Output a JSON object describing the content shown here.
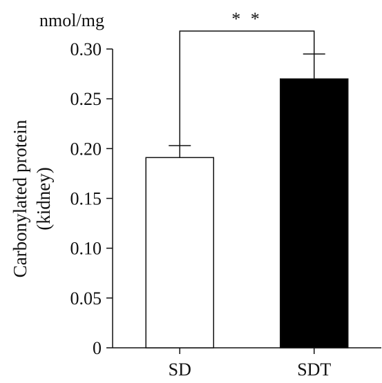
{
  "chart_data": {
    "type": "bar",
    "title": "",
    "unit": "nmol/mg",
    "ylabel_lines": [
      "Carbonylated protein",
      "(kidney)"
    ],
    "xlabel": "",
    "categories": [
      "SD",
      "SDT"
    ],
    "values": [
      0.191,
      0.27
    ],
    "errors": [
      0.012,
      0.025
    ],
    "bar_colors": [
      "#ffffff",
      "#000000"
    ],
    "ylim": [
      0,
      0.3
    ],
    "yticks": [
      0,
      0.05,
      0.1,
      0.15,
      0.2,
      0.25,
      0.3
    ],
    "ytick_labels": [
      "0",
      "0.05",
      "0.10",
      "0.15",
      "0.20",
      "0.25",
      "0.30"
    ],
    "grid": false,
    "legend": "none",
    "significance": {
      "label": "* *",
      "between": [
        0,
        1
      ]
    }
  }
}
